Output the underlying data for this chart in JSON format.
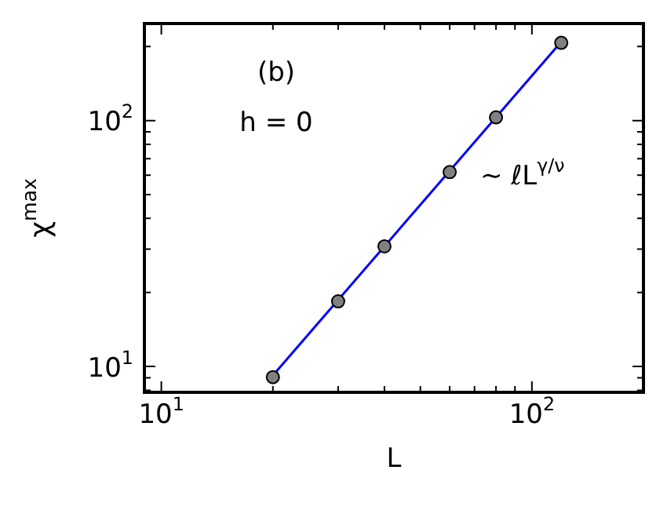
{
  "chart_data": {
    "type": "scatter",
    "xlabel": "L",
    "ylabel": "χ$^{max}$",
    "log": "xy",
    "xlim": [
      9,
      200
    ],
    "ylim": [
      7.85,
      248
    ],
    "xticks": [
      {
        "value": 10,
        "label": "10$^{1}$"
      },
      {
        "value": 20,
        "label": null
      },
      {
        "value": 30,
        "label": null
      },
      {
        "value": 40,
        "label": null
      },
      {
        "value": 50,
        "label": null
      },
      {
        "value": 60,
        "label": null
      },
      {
        "value": 70,
        "label": null
      },
      {
        "value": 80,
        "label": null
      },
      {
        "value": 90,
        "label": null
      },
      {
        "value": 100,
        "label": "10$^{2}$"
      },
      {
        "value": 200,
        "label": null
      }
    ],
    "yticks": [
      {
        "value": 8,
        "label": null
      },
      {
        "value": 9,
        "label": null
      },
      {
        "value": 10,
        "label": "10$^{1}$"
      },
      {
        "value": 20,
        "label": null
      },
      {
        "value": 30,
        "label": null
      },
      {
        "value": 40,
        "label": null
      },
      {
        "value": 50,
        "label": null
      },
      {
        "value": 60,
        "label": null
      },
      {
        "value": 70,
        "label": null
      },
      {
        "value": 80,
        "label": null
      },
      {
        "value": 90,
        "label": null
      },
      {
        "value": 100,
        "label": "10$^{2}$"
      },
      {
        "value": 200,
        "label": null
      }
    ],
    "series": [
      {
        "marker": "circle",
        "color": "#808080",
        "x": [
          20,
          30,
          40,
          60,
          80,
          120
        ],
        "values": [
          9.05,
          18.4,
          30.8,
          61.7,
          103,
          207
        ]
      },
      {
        "type": "line",
        "color": "#0000ff",
        "x": [
          20,
          120
        ],
        "values": [
          9.2,
          209
        ]
      }
    ],
    "annotations": [
      "(b)",
      "h = 0",
      "~ ℓL$^{γ/ν}$"
    ]
  }
}
